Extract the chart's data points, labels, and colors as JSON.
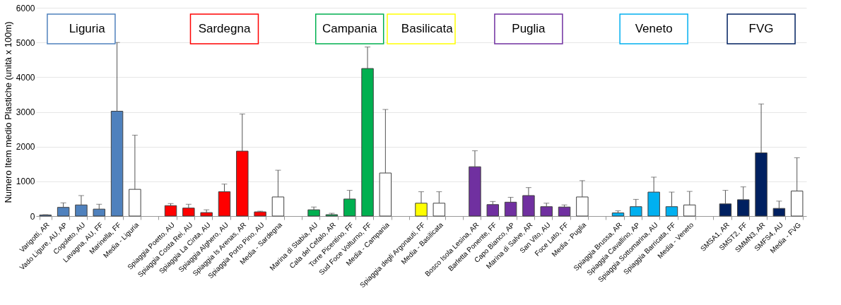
{
  "chart_data": {
    "type": "bar",
    "ylabel": "Numero Item medio Plastiche (unità x 100m)",
    "categories": [
      "Varigotti, AR",
      "Vado Ligure, AU, AP",
      "Cogoleto, AU",
      "Lavagna, AU, FF",
      "Marinella, FF",
      "Media - Liguria",
      null,
      "Spiaggia Poetto, AU",
      "Spiaggia Costa Rei, AU",
      "Spiaggia La Cinta, AU",
      "Spiaggia Alghero, AU",
      "Spiaggia Is Arenas, AR",
      "Spiaggia Porto Pino, AU",
      "Media - Sardegna",
      null,
      "Marina di Stabia, AU",
      "Cala del Cefalo, AR",
      "Torre Picentino, FF",
      "Sud Foce Volturno, FF",
      "Media - Campania",
      null,
      "Spiaggia degli Argonauti, FF",
      "Media - Basilicata",
      null,
      "Bosco Isola Lesina, AR",
      "Barletta Ponente, FF",
      "Capo Bianco, AP",
      "Marina di Salve, AR",
      "San Vito, AU",
      "Foce Lato, FF",
      "Media - Puglia",
      null,
      "Spiaggia Brussa, AR",
      "Spiaggia Cavallino, AP",
      "Spiaggia Sottomarina, AU",
      "Spiaggia Barricata, FF",
      "Media - Veneto",
      null,
      "SMSA1, AR",
      "SMST2, FF",
      "SMMN3, AR",
      "SMFS4, AU",
      "Media - FVG"
    ],
    "series": [
      {
        "name": "Liguria",
        "color": "#4f81bd",
        "colors": [
          "#4f81bd",
          "#4f81bd",
          "#4f81bd",
          "#4f81bd",
          "#4f81bd",
          "#ffffff",
          null,
          null,
          null,
          null,
          null,
          null,
          null,
          null,
          null,
          null,
          null,
          null,
          null,
          null,
          null,
          null,
          null,
          null,
          null,
          null,
          null,
          null,
          null,
          null,
          null,
          null,
          null,
          null,
          null,
          null,
          null,
          null,
          null,
          null,
          null,
          null,
          null
        ],
        "values": [
          30,
          250,
          320,
          200,
          3020,
          770,
          null,
          null,
          null,
          null,
          null,
          null,
          null,
          null,
          null,
          null,
          null,
          null,
          null,
          null,
          null,
          null,
          null,
          null,
          null,
          null,
          null,
          null,
          null,
          null,
          null,
          null,
          null,
          null,
          null,
          null,
          null,
          null,
          null,
          null,
          null,
          null,
          null
        ],
        "errors": [
          10,
          130,
          270,
          140,
          1980,
          1560,
          null,
          null,
          null,
          null,
          null,
          null,
          null,
          null,
          null,
          null,
          null,
          null,
          null,
          null,
          null,
          null,
          null,
          null,
          null,
          null,
          null,
          null,
          null,
          null,
          null,
          null,
          null,
          null,
          null,
          null,
          null,
          null,
          null,
          null,
          null,
          null,
          null
        ]
      },
      {
        "name": "Sardegna",
        "color": "#ff0000",
        "colors": [
          null,
          null,
          null,
          null,
          null,
          null,
          null,
          "#ff0000",
          "#ff0000",
          "#ff0000",
          "#ff0000",
          "#ff0000",
          "#ff0000",
          "#ffffff",
          null,
          null,
          null,
          null,
          null,
          null,
          null,
          null,
          null,
          null,
          null,
          null,
          null,
          null,
          null,
          null,
          null,
          null,
          null,
          null,
          null,
          null,
          null,
          null,
          null,
          null,
          null,
          null,
          null
        ],
        "values": [
          null,
          null,
          null,
          null,
          null,
          null,
          null,
          300,
          230,
          100,
          700,
          1870,
          120,
          550,
          null,
          null,
          null,
          null,
          null,
          null,
          null,
          null,
          null,
          null,
          null,
          null,
          null,
          null,
          null,
          null,
          null,
          null,
          null,
          null,
          null,
          null,
          null,
          null,
          null,
          null,
          null,
          null,
          null
        ],
        "errors": [
          null,
          null,
          null,
          null,
          null,
          null,
          null,
          60,
          110,
          80,
          220,
          1070,
          20,
          770,
          null,
          null,
          null,
          null,
          null,
          null,
          null,
          null,
          null,
          null,
          null,
          null,
          null,
          null,
          null,
          null,
          null,
          null,
          null,
          null,
          null,
          null,
          null,
          null,
          null,
          null,
          null,
          null,
          null
        ]
      },
      {
        "name": "Campania",
        "color": "#00b050",
        "colors": [
          null,
          null,
          null,
          null,
          null,
          null,
          null,
          null,
          null,
          null,
          null,
          null,
          null,
          null,
          null,
          "#00b050",
          "#00b050",
          "#00b050",
          "#00b050",
          "#ffffff",
          null,
          null,
          null,
          null,
          null,
          null,
          null,
          null,
          null,
          null,
          null,
          null,
          null,
          null,
          null,
          null,
          null,
          null,
          null,
          null,
          null,
          null,
          null
        ],
        "values": [
          null,
          null,
          null,
          null,
          null,
          null,
          null,
          null,
          null,
          null,
          null,
          null,
          null,
          null,
          null,
          180,
          40,
          490,
          4250,
          1240,
          null,
          null,
          null,
          null,
          null,
          null,
          null,
          null,
          null,
          null,
          null,
          null,
          null,
          null,
          null,
          null,
          null,
          null,
          null,
          null,
          null,
          null,
          null
        ],
        "errors": [
          null,
          null,
          null,
          null,
          null,
          null,
          null,
          null,
          null,
          null,
          null,
          null,
          null,
          null,
          null,
          80,
          40,
          250,
          620,
          1830,
          null,
          null,
          null,
          null,
          null,
          null,
          null,
          null,
          null,
          null,
          null,
          null,
          null,
          null,
          null,
          null,
          null,
          null,
          null,
          null,
          null,
          null,
          null
        ]
      },
      {
        "name": "Basilicata",
        "color": "#ffff00",
        "colors": [
          null,
          null,
          null,
          null,
          null,
          null,
          null,
          null,
          null,
          null,
          null,
          null,
          null,
          null,
          null,
          null,
          null,
          null,
          null,
          null,
          null,
          "#ffff00",
          "#ffffff",
          null,
          null,
          null,
          null,
          null,
          null,
          null,
          null,
          null,
          null,
          null,
          null,
          null,
          null,
          null,
          null,
          null,
          null,
          null,
          null
        ],
        "values": [
          null,
          null,
          null,
          null,
          null,
          null,
          null,
          null,
          null,
          null,
          null,
          null,
          null,
          null,
          null,
          null,
          null,
          null,
          null,
          null,
          null,
          370,
          370,
          null,
          null,
          null,
          null,
          null,
          null,
          null,
          null,
          null,
          null,
          null,
          null,
          null,
          null,
          null,
          null,
          null,
          null,
          null,
          null
        ],
        "errors": [
          null,
          null,
          null,
          null,
          null,
          null,
          null,
          null,
          null,
          null,
          null,
          null,
          null,
          null,
          null,
          null,
          null,
          null,
          null,
          null,
          null,
          330,
          330,
          null,
          null,
          null,
          null,
          null,
          null,
          null,
          null,
          null,
          null,
          null,
          null,
          null,
          null,
          null,
          null,
          null,
          null,
          null,
          null
        ]
      },
      {
        "name": "Puglia",
        "color": "#7030a0",
        "colors": [
          null,
          null,
          null,
          null,
          null,
          null,
          null,
          null,
          null,
          null,
          null,
          null,
          null,
          null,
          null,
          null,
          null,
          null,
          null,
          null,
          null,
          null,
          null,
          null,
          "#7030a0",
          "#7030a0",
          "#7030a0",
          "#7030a0",
          "#7030a0",
          "#7030a0",
          "#ffffff",
          null,
          null,
          null,
          null,
          null,
          null,
          null,
          null,
          null,
          null,
          null,
          null
        ],
        "values": [
          null,
          null,
          null,
          null,
          null,
          null,
          null,
          null,
          null,
          null,
          null,
          null,
          null,
          null,
          null,
          null,
          null,
          null,
          null,
          null,
          null,
          null,
          null,
          null,
          1420,
          330,
          400,
          590,
          270,
          260,
          550,
          null,
          null,
          null,
          null,
          null,
          null,
          null,
          null,
          null,
          null,
          null,
          null
        ],
        "errors": [
          null,
          null,
          null,
          null,
          null,
          null,
          null,
          null,
          null,
          null,
          null,
          null,
          null,
          null,
          null,
          null,
          null,
          null,
          null,
          null,
          null,
          null,
          null,
          null,
          460,
          90,
          140,
          230,
          100,
          60,
          470,
          null,
          null,
          null,
          null,
          null,
          null,
          null,
          null,
          null,
          null,
          null,
          null
        ]
      },
      {
        "name": "Veneto",
        "color": "#00b0f0",
        "colors": [
          null,
          null,
          null,
          null,
          null,
          null,
          null,
          null,
          null,
          null,
          null,
          null,
          null,
          null,
          null,
          null,
          null,
          null,
          null,
          null,
          null,
          null,
          null,
          null,
          null,
          null,
          null,
          null,
          null,
          null,
          null,
          null,
          "#00b0f0",
          "#00b0f0",
          "#00b0f0",
          "#00b0f0",
          "#ffffff",
          null,
          null,
          null,
          null,
          null,
          null
        ],
        "values": [
          null,
          null,
          null,
          null,
          null,
          null,
          null,
          null,
          null,
          null,
          null,
          null,
          null,
          null,
          null,
          null,
          null,
          null,
          null,
          null,
          null,
          null,
          null,
          null,
          null,
          null,
          null,
          null,
          null,
          null,
          null,
          null,
          90,
          270,
          690,
          270,
          320,
          null,
          null,
          null,
          null,
          null,
          null
        ],
        "errors": [
          null,
          null,
          null,
          null,
          null,
          null,
          null,
          null,
          null,
          null,
          null,
          null,
          null,
          null,
          null,
          null,
          null,
          null,
          null,
          null,
          null,
          null,
          null,
          null,
          null,
          null,
          null,
          null,
          null,
          null,
          null,
          null,
          60,
          210,
          430,
          420,
          390,
          null,
          null,
          null,
          null,
          null,
          null
        ]
      },
      {
        "name": "FVG",
        "color": "#002060",
        "colors": [
          null,
          null,
          null,
          null,
          null,
          null,
          null,
          null,
          null,
          null,
          null,
          null,
          null,
          null,
          null,
          null,
          null,
          null,
          null,
          null,
          null,
          null,
          null,
          null,
          null,
          null,
          null,
          null,
          null,
          null,
          null,
          null,
          null,
          null,
          null,
          null,
          null,
          null,
          "#002060",
          "#002060",
          "#002060",
          "#002060",
          "#ffffff"
        ],
        "values": [
          null,
          null,
          null,
          null,
          null,
          null,
          null,
          null,
          null,
          null,
          null,
          null,
          null,
          null,
          null,
          null,
          null,
          null,
          null,
          null,
          null,
          null,
          null,
          null,
          null,
          null,
          null,
          null,
          null,
          null,
          null,
          null,
          null,
          null,
          null,
          null,
          null,
          null,
          350,
          470,
          1820,
          220,
          720
        ],
        "errors": [
          null,
          null,
          null,
          null,
          null,
          null,
          null,
          null,
          null,
          null,
          null,
          null,
          null,
          null,
          null,
          null,
          null,
          null,
          null,
          null,
          null,
          null,
          null,
          null,
          null,
          null,
          null,
          null,
          null,
          null,
          null,
          null,
          null,
          null,
          null,
          null,
          null,
          null,
          390,
          370,
          1410,
          210,
          960
        ]
      }
    ],
    "ylim": [
      0,
      6000
    ],
    "yticks": [
      0,
      1000,
      2000,
      3000,
      4000,
      5000,
      6000
    ],
    "grid": "y"
  }
}
